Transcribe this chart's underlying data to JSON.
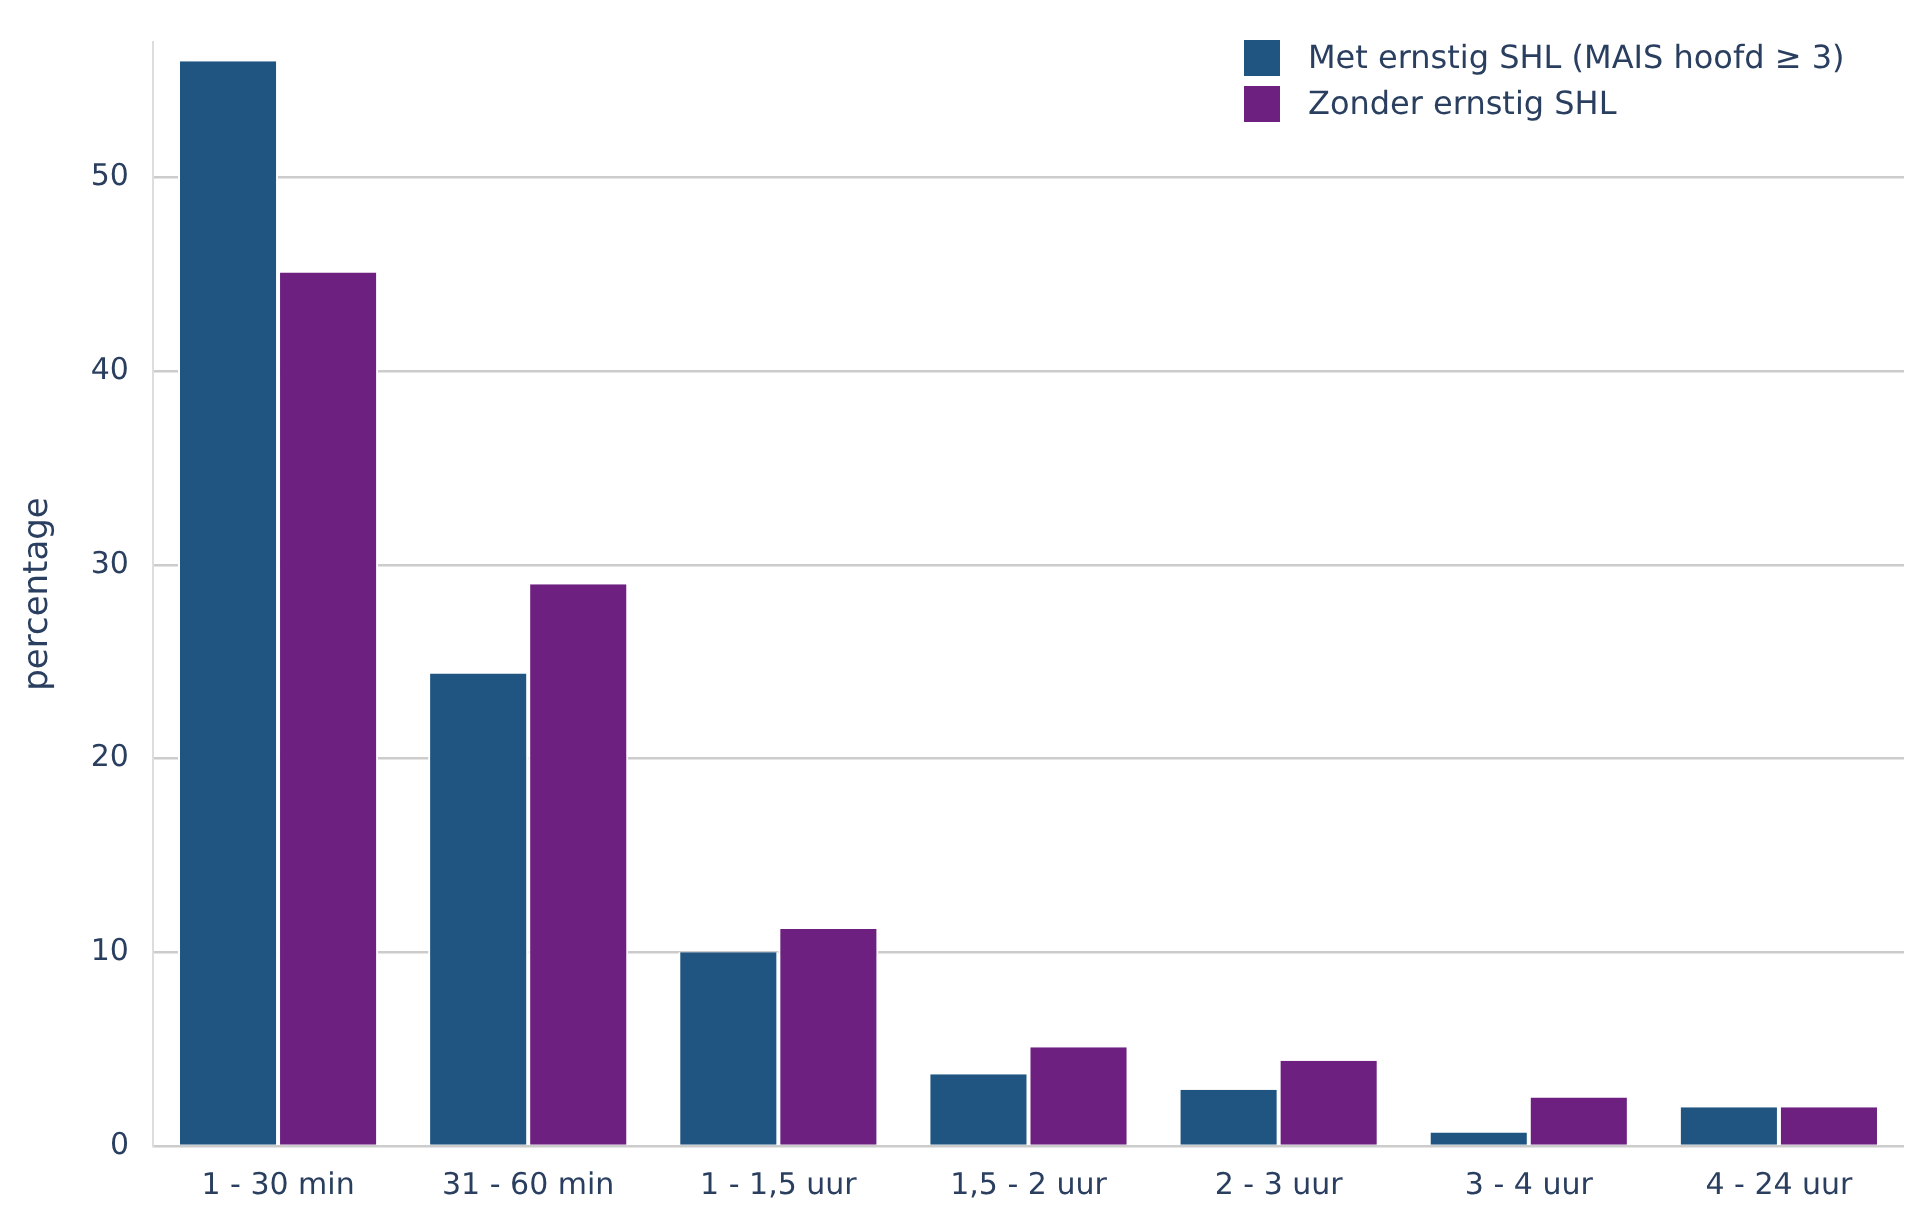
{
  "chart_data": {
    "type": "bar",
    "ylabel": "percentage",
    "categories": [
      "1 - 30 min",
      "31 - 60 min",
      "1 - 1,5 uur",
      "1,5 - 2 uur",
      "2 - 3 uur",
      "3 - 4 uur",
      "4 - 24 uur"
    ],
    "series": [
      {
        "name": "Met ernstig SHL (MAIS hoofd ≥ 3)",
        "color": "#1f5580",
        "values": [
          56.0,
          24.4,
          10.0,
          3.7,
          2.9,
          0.7,
          2.0
        ]
      },
      {
        "name": "Zonder ernstig SHL",
        "color": "#6d2080",
        "values": [
          45.1,
          29.0,
          11.2,
          5.1,
          4.4,
          2.5,
          2.0
        ]
      }
    ],
    "ylim": [
      0,
      57
    ],
    "yticks": [
      0,
      10,
      20,
      30,
      40,
      50
    ],
    "grid": "y",
    "legend": "top right"
  }
}
